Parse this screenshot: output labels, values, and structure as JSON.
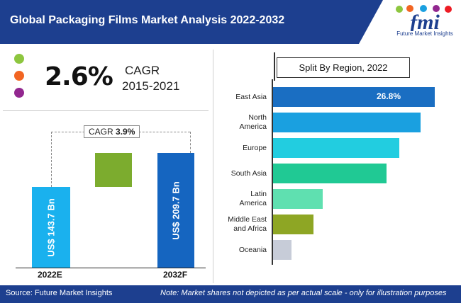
{
  "header": {
    "title": "Global Packaging Films Market Analysis 2022-2032",
    "logo_text": "fmi",
    "logo_tagline": "Future Market Insights"
  },
  "cagr_block": {
    "value": "2.6%",
    "label": "CAGR",
    "period": "2015-2021",
    "dot_colors": [
      "#8dc63f",
      "#f26522",
      "#92278f"
    ]
  },
  "market_size": {
    "cagr_tag_prefix": "CAGR",
    "cagr_tag_value": "3.9%",
    "bars": [
      {
        "year": "2022E",
        "value": 143.7,
        "label": "US$ 143.7 Bn",
        "color": "#1ab1ee"
      },
      {
        "year": "2032F",
        "value": 209.7,
        "label": "US$ 209.7 Bn",
        "color": "#1565c0"
      }
    ],
    "growth_color": "#7cac2e"
  },
  "chart_data": [
    {
      "type": "bar",
      "orientation": "vertical",
      "categories": [
        "2022E",
        "2032F"
      ],
      "values": [
        143.7,
        209.7
      ],
      "unit": "US$ Bn",
      "annotation": "CAGR 3.9%"
    },
    {
      "type": "bar",
      "orientation": "horizontal",
      "title": "Split By Region, 2022",
      "categories": [
        "East Asia",
        "North America",
        "Europe",
        "South Asia",
        "Latin America",
        "Middle East and Africa",
        "Oceania"
      ],
      "values": [
        26.8,
        24.5,
        20.9,
        18.8,
        8.2,
        6.7,
        3.1
      ],
      "labeled_values": {
        "East Asia": "26.8%"
      },
      "colors": [
        "#1a6ec2",
        "#1aa0e0",
        "#22cde0",
        "#20c994",
        "#5fe0b0",
        "#8ea624",
        "#c7ccd8"
      ]
    }
  ],
  "regions": {
    "title": "Split By Region, 2022",
    "items": [
      {
        "line1": "East Asia",
        "line2": ""
      },
      {
        "line1": "North",
        "line2": "America"
      },
      {
        "line1": "Europe",
        "line2": ""
      },
      {
        "line1": "South Asia",
        "line2": ""
      },
      {
        "line1": "Latin",
        "line2": "America"
      },
      {
        "line1": "Middle East",
        "line2": "and Africa"
      },
      {
        "line1": "Oceania",
        "line2": ""
      }
    ],
    "top_label": "26.8%"
  },
  "footer": {
    "source": "Source: Future Market Insights",
    "note": "Note: Market shares not depicted as per actual scale - only for illustration purposes"
  }
}
